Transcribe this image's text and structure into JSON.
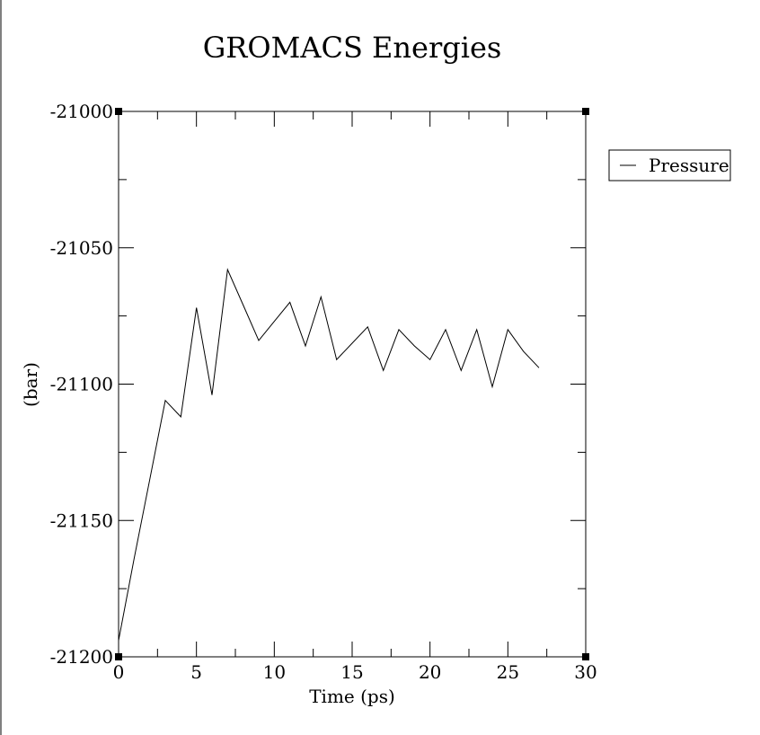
{
  "chart_data": {
    "type": "line",
    "title": "GROMACS Energies",
    "xlabel": "Time (ps)",
    "ylabel": "(bar)",
    "xlim": [
      0,
      30
    ],
    "ylim": [
      -21200,
      -21000
    ],
    "x_ticks": [
      0,
      5,
      10,
      15,
      20,
      25,
      30
    ],
    "y_ticks": [
      -21200,
      -21150,
      -21100,
      -21050,
      -21000
    ],
    "grid": false,
    "legend_position": "top-right, outside plot",
    "series": [
      {
        "name": "Pressure",
        "color": "#000000",
        "x": [
          0,
          1,
          2,
          3,
          4,
          5,
          6,
          7,
          8,
          9,
          10,
          11,
          12,
          13,
          14,
          15,
          16,
          17,
          18,
          19,
          20,
          21,
          22,
          23,
          24,
          25,
          26,
          27
        ],
        "y": [
          -21194,
          -21164,
          -21135,
          -21106,
          -21112,
          -21072,
          -21104,
          -21058,
          -21071,
          -21084,
          -21077,
          -21070,
          -21086,
          -21068,
          -21091,
          -21085,
          -21079,
          -21095,
          -21080,
          -21086,
          -21091,
          -21080,
          -21095,
          -21080,
          -21101,
          -21080,
          -21088,
          -21094
        ]
      }
    ]
  }
}
